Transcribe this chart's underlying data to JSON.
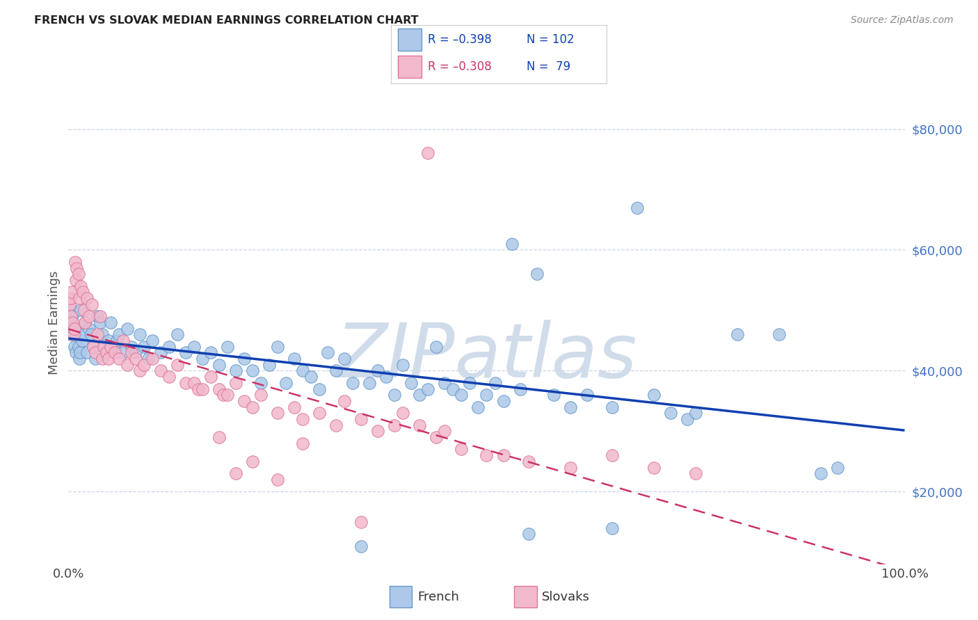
{
  "title": "FRENCH VS SLOVAK MEDIAN EARNINGS CORRELATION CHART",
  "source": "Source: ZipAtlas.com",
  "ylabel": "Median Earnings",
  "yticks": [
    20000,
    40000,
    60000,
    80000
  ],
  "ytick_labels": [
    "$20,000",
    "$40,000",
    "$60,000",
    "$80,000"
  ],
  "xlim": [
    0.0,
    1.0
  ],
  "ylim": [
    8000,
    88000
  ],
  "french_color": "#adc8e8",
  "french_edge": "#6699cc",
  "slovak_color": "#f2b8cc",
  "slovak_edge": "#dd7799",
  "french_line_color": "#1040b0",
  "slovak_line_color": "#cc3366",
  "legend_color_french": "#1040b0",
  "legend_color_slovak_R": "#cc3366",
  "legend_color_N": "#1040b0",
  "watermark": "ZIPatlas",
  "watermark_color": "#d0dcea",
  "background_color": "#ffffff",
  "grid_color": "#c8d4e0",
  "french_scatter_x": [
    0.002,
    0.003,
    0.004,
    0.005,
    0.006,
    0.007,
    0.008,
    0.009,
    0.01,
    0.012,
    0.013,
    0.014,
    0.015,
    0.016,
    0.018,
    0.02,
    0.022,
    0.025,
    0.027,
    0.03,
    0.032,
    0.035,
    0.038,
    0.04,
    0.043,
    0.045,
    0.048,
    0.05,
    0.055,
    0.058,
    0.06,
    0.065,
    0.07,
    0.075,
    0.08,
    0.085,
    0.09,
    0.095,
    0.1,
    0.11,
    0.12,
    0.13,
    0.14,
    0.15,
    0.16,
    0.17,
    0.18,
    0.19,
    0.2,
    0.21,
    0.22,
    0.23,
    0.24,
    0.25,
    0.26,
    0.27,
    0.28,
    0.29,
    0.3,
    0.31,
    0.32,
    0.33,
    0.34,
    0.36,
    0.37,
    0.38,
    0.39,
    0.4,
    0.41,
    0.42,
    0.43,
    0.44,
    0.45,
    0.46,
    0.47,
    0.48,
    0.49,
    0.5,
    0.51,
    0.52,
    0.53,
    0.54,
    0.56,
    0.58,
    0.6,
    0.62,
    0.65,
    0.68,
    0.7,
    0.72,
    0.74,
    0.75,
    0.8,
    0.85,
    0.9,
    0.92,
    0.35,
    0.55,
    0.65
  ],
  "french_scatter_y": [
    48000,
    46000,
    50000,
    49000,
    47000,
    44000,
    46000,
    43000,
    47000,
    44000,
    42000,
    43000,
    50000,
    45000,
    46000,
    48000,
    43000,
    47000,
    46000,
    44000,
    42000,
    49000,
    48000,
    46000,
    44000,
    43000,
    45000,
    48000,
    44000,
    45000,
    46000,
    43000,
    47000,
    44000,
    43000,
    46000,
    44000,
    42000,
    45000,
    43000,
    44000,
    46000,
    43000,
    44000,
    42000,
    43000,
    41000,
    44000,
    40000,
    42000,
    40000,
    38000,
    41000,
    44000,
    38000,
    42000,
    40000,
    39000,
    37000,
    43000,
    40000,
    42000,
    38000,
    38000,
    40000,
    39000,
    36000,
    41000,
    38000,
    36000,
    37000,
    44000,
    38000,
    37000,
    36000,
    38000,
    34000,
    36000,
    38000,
    35000,
    61000,
    37000,
    56000,
    36000,
    34000,
    36000,
    34000,
    67000,
    36000,
    33000,
    32000,
    33000,
    46000,
    46000,
    23000,
    24000,
    11000,
    13000,
    14000
  ],
  "slovak_scatter_x": [
    0.001,
    0.002,
    0.003,
    0.004,
    0.005,
    0.006,
    0.007,
    0.008,
    0.009,
    0.01,
    0.012,
    0.013,
    0.015,
    0.017,
    0.019,
    0.02,
    0.022,
    0.025,
    0.028,
    0.03,
    0.032,
    0.035,
    0.038,
    0.04,
    0.042,
    0.045,
    0.048,
    0.05,
    0.055,
    0.06,
    0.065,
    0.07,
    0.075,
    0.08,
    0.085,
    0.09,
    0.1,
    0.11,
    0.12,
    0.13,
    0.14,
    0.15,
    0.155,
    0.16,
    0.17,
    0.18,
    0.185,
    0.19,
    0.2,
    0.21,
    0.22,
    0.23,
    0.25,
    0.27,
    0.28,
    0.3,
    0.32,
    0.33,
    0.35,
    0.37,
    0.39,
    0.4,
    0.42,
    0.43,
    0.44,
    0.45,
    0.47,
    0.5,
    0.52,
    0.55,
    0.6,
    0.65,
    0.7,
    0.75,
    0.22,
    0.25,
    0.28,
    0.18,
    0.2,
    0.35
  ],
  "slovak_scatter_y": [
    51000,
    52000,
    49000,
    53000,
    48000,
    46000,
    47000,
    58000,
    55000,
    57000,
    56000,
    52000,
    54000,
    53000,
    50000,
    48000,
    52000,
    49000,
    51000,
    44000,
    43000,
    46000,
    49000,
    42000,
    44000,
    43000,
    42000,
    44000,
    43000,
    42000,
    45000,
    41000,
    43000,
    42000,
    40000,
    41000,
    42000,
    40000,
    39000,
    41000,
    38000,
    38000,
    37000,
    37000,
    39000,
    37000,
    36000,
    36000,
    38000,
    35000,
    34000,
    36000,
    33000,
    34000,
    32000,
    33000,
    31000,
    35000,
    32000,
    30000,
    31000,
    33000,
    31000,
    76000,
    29000,
    30000,
    27000,
    26000,
    26000,
    25000,
    24000,
    26000,
    24000,
    23000,
    25000,
    22000,
    28000,
    29000,
    23000,
    15000
  ]
}
